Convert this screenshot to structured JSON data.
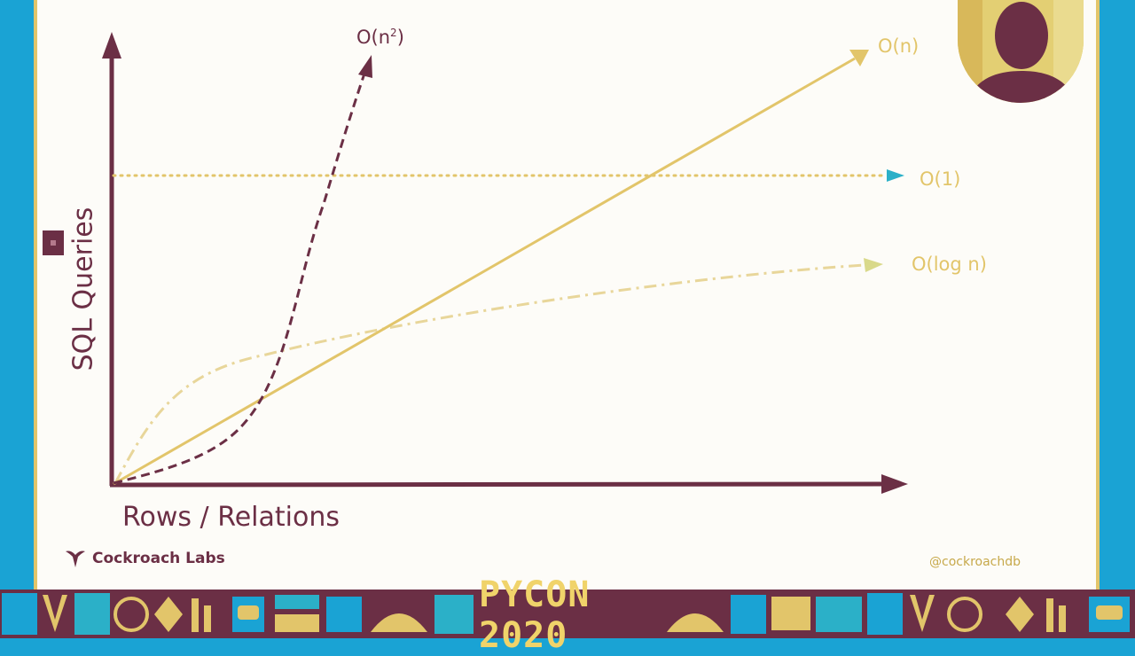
{
  "diagram": {
    "y_axis_label": "SQL Queries",
    "x_axis_label": "Rows / Relations",
    "curves": {
      "n_squared": "O(n",
      "n_squared_exp": "2",
      "n_squared_close": ")",
      "linear": "O(n)",
      "constant": "O(1)",
      "log": "O(log n)"
    }
  },
  "branding": {
    "logo_text": "Cockroach Labs",
    "handle": "@cockroachdb",
    "banner_text": "PYCON 2020"
  },
  "colors": {
    "maroon": "#6b2f45",
    "gold": "#e2c56a",
    "teal": "#2bb0c8",
    "blue_frame": "#1aa3d4"
  }
}
